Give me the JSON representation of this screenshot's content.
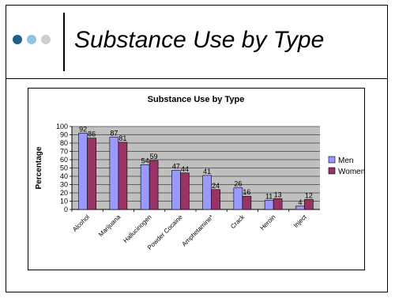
{
  "slide": {
    "title": "Substance Use by Type",
    "bullet_colors": [
      "#1f5f8b",
      "#8fc5e3",
      "#cfcfcf"
    ]
  },
  "chart_data": {
    "type": "bar",
    "title": "Substance Use by Type",
    "ylabel": "Percentage",
    "xlabel": "",
    "ylim": [
      0,
      100
    ],
    "yticks": [
      0,
      10,
      20,
      30,
      40,
      50,
      60,
      70,
      80,
      90,
      100
    ],
    "grid": true,
    "legend_position": "right",
    "categories": [
      "Alcohol",
      "Marijuana",
      "Hallucinogen",
      "Powder Cocaine",
      "Amphetamine*",
      "Crack",
      "Heroin",
      "Inject"
    ],
    "series": [
      {
        "name": "Men",
        "color": "#9999ff",
        "values": [
          92,
          87,
          54,
          47,
          41,
          26,
          11,
          4
        ]
      },
      {
        "name": "Women",
        "color": "#993366",
        "values": [
          86,
          81,
          59,
          44,
          24,
          16,
          13,
          12
        ]
      }
    ],
    "plot_background": "#c0c0c0"
  }
}
